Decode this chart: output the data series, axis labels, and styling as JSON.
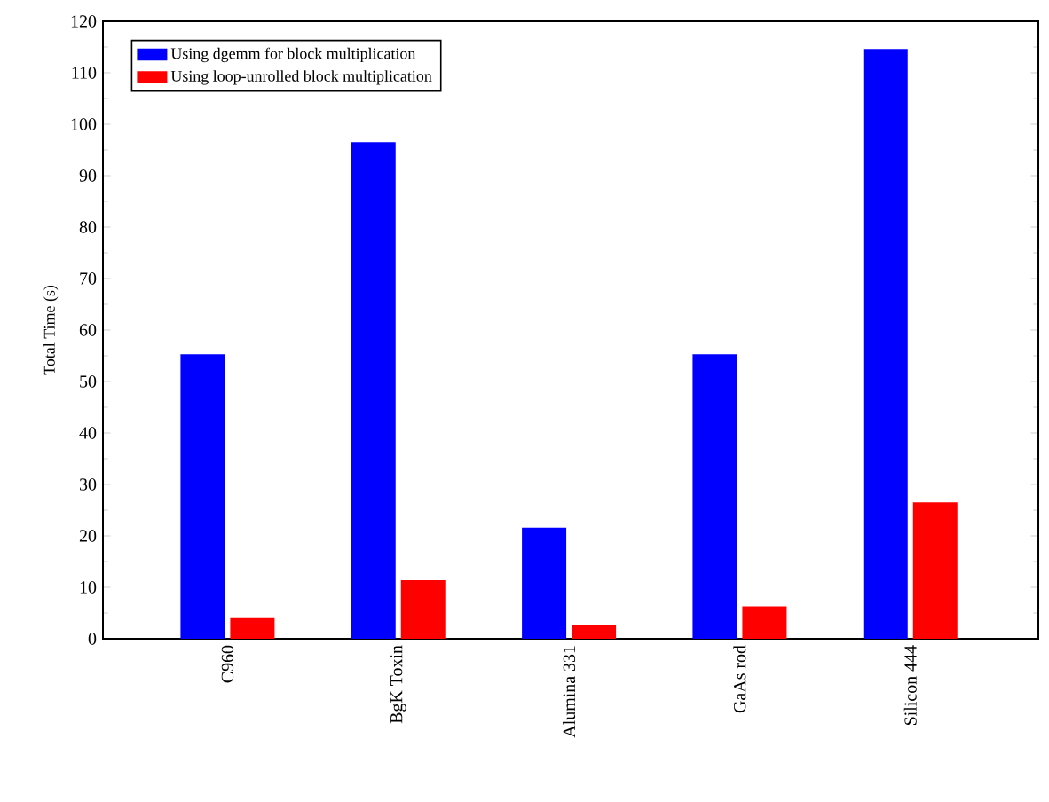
{
  "chart_data": {
    "type": "bar",
    "ylabel": "Total Time (s)",
    "categories": [
      "C960",
      "BgK Toxin",
      "Alumina 331",
      "GaAs rod",
      "Silicon 444"
    ],
    "series": [
      {
        "name": "Using dgemm for block multiplication",
        "color": "#0000ff",
        "values": [
          55.3,
          96.5,
          21.6,
          55.3,
          114.6
        ]
      },
      {
        "name": "Using loop-unrolled block multiplication",
        "color": "#ff0000",
        "values": [
          4.0,
          11.4,
          2.7,
          6.3,
          26.5
        ]
      }
    ],
    "ylim": [
      0,
      120
    ],
    "yticks": [
      0,
      10,
      20,
      30,
      40,
      50,
      60,
      70,
      80,
      90,
      100,
      110,
      120
    ],
    "legend": "top left",
    "grid": false
  }
}
